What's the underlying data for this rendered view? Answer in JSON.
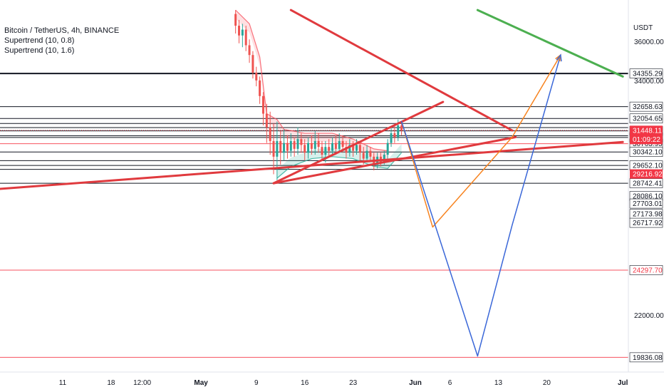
{
  "chart_data": {
    "type": "line",
    "title": "Bitcoin / TetherUS, 4h, BINANCE",
    "indicators": [
      "Supertrend (10, 0.8)",
      "Supertrend (10, 1.6)"
    ],
    "currency": "USDT",
    "y_range": [
      19300,
      37500
    ],
    "x_tick_labels": [
      {
        "label": "11",
        "day": 11
      },
      {
        "label": "18",
        "day": 18
      },
      {
        "label": "12:00",
        "day": 22.5
      },
      {
        "label": "May",
        "day": 31
      },
      {
        "label": "9",
        "day": 39
      },
      {
        "label": "16",
        "day": 46
      },
      {
        "label": "23",
        "day": 53
      },
      {
        "label": "Jun",
        "day": 62
      },
      {
        "label": "6",
        "day": 67
      },
      {
        "label": "13",
        "day": 74
      },
      {
        "label": "20",
        "day": 81
      },
      {
        "label": "Jul",
        "day": 92
      }
    ],
    "y_tick_labels": [
      "36000.00",
      "34000.00",
      "22000.00"
    ],
    "price_levels": [
      {
        "value": 34355.29,
        "label": "34355.29",
        "style": "black-bold",
        "label_bg": "#ffffff",
        "label_fg": "#131722"
      },
      {
        "value": 32658.63,
        "label": "32658.63",
        "style": "black",
        "label_bg": "#ffffff",
        "label_fg": "#131722"
      },
      {
        "value": 32054.65,
        "label": "32054.65",
        "style": "black",
        "label_bg": "#ffffff",
        "label_fg": "#131722"
      },
      {
        "value": 31420.95,
        "label": "31420.95",
        "style": "black",
        "label_bg": "#ffffff",
        "label_fg": "#131722"
      },
      {
        "value": 31084.02,
        "label": "31084.02",
        "style": "black",
        "label_bg": "#ffffff",
        "label_fg": "#131722"
      },
      {
        "value": 30763.95,
        "label": "30763.95",
        "style": "red-thin",
        "label_bg": "#ffffff",
        "label_fg": "#131722"
      },
      {
        "value": 30342.1,
        "label": "30342.10",
        "style": "black",
        "label_bg": "#ffffff",
        "label_fg": "#131722"
      },
      {
        "value": 29652.1,
        "label": "29652.10",
        "style": "black",
        "label_bg": "#ffffff",
        "label_fg": "#131722"
      },
      {
        "value": 28742.41,
        "label": "28742.41",
        "style": "black",
        "label_bg": "#ffffff",
        "label_fg": "#131722"
      },
      {
        "value": 24297.7,
        "label": "24297.70",
        "style": "red-thin",
        "label_bg": "#ffffff",
        "label_fg": "#f23645"
      },
      {
        "value": 19836.08,
        "label": "19836.08",
        "style": "red-thin",
        "label_bg": "#ffffff",
        "label_fg": "#131722"
      }
    ],
    "extra_lines_unlabeled": [
      31800,
      31590,
      31170,
      29900,
      29450
    ],
    "axis_labels_only": [
      {
        "value": 28086.1,
        "label": "28086.10",
        "label_bg": "#ffffff",
        "label_fg": "#131722"
      },
      {
        "value": 27703.01,
        "label": "27703.01",
        "label_bg": "#ffffff",
        "label_fg": "#131722"
      },
      {
        "value": 27173.98,
        "label": "27173.98",
        "label_bg": "#ffffff",
        "label_fg": "#131722"
      },
      {
        "value": 26717.92,
        "label": "26717.92",
        "label_bg": "#ffffff",
        "label_fg": "#131722"
      }
    ],
    "current_price": {
      "value": 31448.11,
      "label": "31448.11",
      "countdown": "01:09:22",
      "bg": "#f23645",
      "fg": "#ffffff"
    },
    "support_level": {
      "value": 29216.92,
      "label": "29216.92",
      "bg": "#f23645",
      "fg": "#ffffff"
    },
    "candles": [
      {
        "day": 36,
        "o": 37400,
        "c": 36800,
        "h": 37600,
        "l": 36400
      },
      {
        "day": 36.5,
        "o": 36800,
        "c": 36300,
        "h": 37100,
        "l": 35900
      },
      {
        "day": 37,
        "o": 36300,
        "c": 36600,
        "h": 36900,
        "l": 35700
      },
      {
        "day": 37.5,
        "o": 36600,
        "c": 35800,
        "h": 36800,
        "l": 35500
      },
      {
        "day": 38,
        "o": 35800,
        "c": 35300,
        "h": 36100,
        "l": 34900
      },
      {
        "day": 38.5,
        "o": 35300,
        "c": 34400,
        "h": 35500,
        "l": 34100
      },
      {
        "day": 39,
        "o": 34400,
        "c": 34000,
        "h": 34700,
        "l": 33700
      },
      {
        "day": 39.5,
        "o": 34000,
        "c": 33200,
        "h": 34200,
        "l": 32800
      },
      {
        "day": 40,
        "o": 33200,
        "c": 32300,
        "h": 33400,
        "l": 31700
      },
      {
        "day": 40.5,
        "o": 32300,
        "c": 31600,
        "h": 32800,
        "l": 30800
      },
      {
        "day": 41,
        "o": 31600,
        "c": 30900,
        "h": 32400,
        "l": 30200
      },
      {
        "day": 41.5,
        "o": 30900,
        "c": 30100,
        "h": 31800,
        "l": 29200
      },
      {
        "day": 42,
        "o": 30100,
        "c": 30900,
        "h": 31900,
        "l": 28900
      },
      {
        "day": 42.5,
        "o": 30900,
        "c": 30300,
        "h": 31400,
        "l": 29700
      },
      {
        "day": 43,
        "o": 30300,
        "c": 30800,
        "h": 31500,
        "l": 29900
      },
      {
        "day": 43.5,
        "o": 30800,
        "c": 30400,
        "h": 31200,
        "l": 30000
      },
      {
        "day": 44,
        "o": 30400,
        "c": 30900,
        "h": 31300,
        "l": 30100
      },
      {
        "day": 44.5,
        "o": 30900,
        "c": 30500,
        "h": 31100,
        "l": 30100
      },
      {
        "day": 45,
        "o": 30500,
        "c": 31000,
        "h": 31600,
        "l": 30200
      },
      {
        "day": 45.5,
        "o": 31000,
        "c": 30700,
        "h": 31300,
        "l": 30300
      },
      {
        "day": 46,
        "o": 30700,
        "c": 30300,
        "h": 31000,
        "l": 29900
      },
      {
        "day": 46.5,
        "o": 30300,
        "c": 30800,
        "h": 31100,
        "l": 30000
      },
      {
        "day": 47,
        "o": 30800,
        "c": 30500,
        "h": 31200,
        "l": 30200
      },
      {
        "day": 47.5,
        "o": 30500,
        "c": 30900,
        "h": 31400,
        "l": 30200
      },
      {
        "day": 48,
        "o": 30900,
        "c": 30600,
        "h": 31300,
        "l": 30300
      },
      {
        "day": 48.5,
        "o": 30600,
        "c": 30200,
        "h": 30900,
        "l": 29900
      },
      {
        "day": 49,
        "o": 30200,
        "c": 30600,
        "h": 30900,
        "l": 29800
      },
      {
        "day": 49.5,
        "o": 30600,
        "c": 30400,
        "h": 31000,
        "l": 30100
      },
      {
        "day": 50,
        "o": 30400,
        "c": 30800,
        "h": 31100,
        "l": 30200
      },
      {
        "day": 50.5,
        "o": 30800,
        "c": 30500,
        "h": 31200,
        "l": 30200
      },
      {
        "day": 51,
        "o": 30500,
        "c": 30900,
        "h": 31300,
        "l": 30300
      },
      {
        "day": 51.5,
        "o": 30900,
        "c": 30600,
        "h": 31200,
        "l": 30300
      },
      {
        "day": 52,
        "o": 30600,
        "c": 30300,
        "h": 30900,
        "l": 30000
      },
      {
        "day": 52.5,
        "o": 30300,
        "c": 30700,
        "h": 31000,
        "l": 30100
      },
      {
        "day": 53,
        "o": 30700,
        "c": 30400,
        "h": 30900,
        "l": 30100
      },
      {
        "day": 53.5,
        "o": 30400,
        "c": 30700,
        "h": 31000,
        "l": 30200
      },
      {
        "day": 54,
        "o": 30700,
        "c": 30300,
        "h": 30900,
        "l": 29900
      },
      {
        "day": 54.5,
        "o": 30300,
        "c": 30000,
        "h": 30600,
        "l": 29700
      },
      {
        "day": 55,
        "o": 30000,
        "c": 30400,
        "h": 30700,
        "l": 29800
      },
      {
        "day": 55.5,
        "o": 30400,
        "c": 30100,
        "h": 30600,
        "l": 29900
      },
      {
        "day": 56,
        "o": 30100,
        "c": 29700,
        "h": 30300,
        "l": 29400
      },
      {
        "day": 56.5,
        "o": 29700,
        "c": 30100,
        "h": 30300,
        "l": 29500
      },
      {
        "day": 57,
        "o": 30100,
        "c": 29800,
        "h": 30300,
        "l": 29600
      },
      {
        "day": 57.5,
        "o": 29800,
        "c": 30200,
        "h": 30400,
        "l": 29700
      },
      {
        "day": 58,
        "o": 30200,
        "c": 30800,
        "h": 31000,
        "l": 30000
      },
      {
        "day": 58.5,
        "o": 30800,
        "c": 31300,
        "h": 31600,
        "l": 30600
      },
      {
        "day": 59,
        "o": 31300,
        "c": 31100,
        "h": 31800,
        "l": 30800
      },
      {
        "day": 59.5,
        "o": 31100,
        "c": 31700,
        "h": 32000,
        "l": 30900
      },
      {
        "day": 60,
        "o": 31700,
        "c": 31448,
        "h": 31900,
        "l": 31200
      }
    ],
    "supertrend_bands": [
      {
        "name": "Supertrend (10, 0.8)",
        "color": "#f7525f",
        "points": [
          [
            36,
            37600
          ],
          [
            38,
            36900
          ],
          [
            39.5,
            35200
          ],
          [
            40.5,
            32300
          ],
          [
            42,
            32000
          ],
          [
            43,
            31500
          ],
          [
            46,
            31300
          ],
          [
            50,
            31300
          ],
          [
            53,
            31000
          ],
          [
            56,
            30500
          ],
          [
            58,
            30400
          ]
        ]
      },
      {
        "name": "Supertrend (10, 1.6)",
        "color": "#22ab94",
        "points": [
          [
            42,
            29000
          ],
          [
            44,
            29600
          ],
          [
            47,
            30000
          ],
          [
            50,
            30100
          ],
          [
            53,
            30000
          ],
          [
            56,
            29600
          ],
          [
            58,
            29500
          ],
          [
            60,
            30300
          ]
        ]
      }
    ],
    "drawn_lines": [
      {
        "name": "long-red-trendline",
        "color": "#e03a3e",
        "width": 3,
        "points": [
          [
            0,
            28400
          ],
          [
            92,
            30850
          ]
        ]
      },
      {
        "name": "triangle-upper",
        "color": "#e03a3e",
        "width": 3,
        "points": [
          [
            41.5,
            28740
          ],
          [
            66,
            32900
          ]
        ]
      },
      {
        "name": "triangle-lower",
        "color": "#e03a3e",
        "width": 3,
        "points": [
          [
            41.5,
            28740
          ],
          [
            76.5,
            31100
          ]
        ]
      },
      {
        "name": "descending-red",
        "color": "#e03a3e",
        "width": 3,
        "points": [
          [
            44,
            37600
          ],
          [
            76,
            31440
          ]
        ]
      },
      {
        "name": "green-resistance",
        "color": "#4caf50",
        "width": 3,
        "points": [
          [
            71,
            37600
          ],
          [
            92,
            34200
          ]
        ]
      },
      {
        "name": "orange-projection",
        "color": "#f7831f",
        "width": 1.5,
        "points": [
          [
            60,
            31900
          ],
          [
            64.5,
            26500
          ],
          [
            76,
            31100
          ],
          [
            83,
            35300
          ]
        ]
      },
      {
        "name": "blue-projection",
        "color": "#3a67d8",
        "width": 1.5,
        "points": [
          [
            60,
            31900
          ],
          [
            71,
            19900
          ],
          [
            76,
            26600
          ],
          [
            83,
            35300
          ]
        ]
      }
    ]
  }
}
